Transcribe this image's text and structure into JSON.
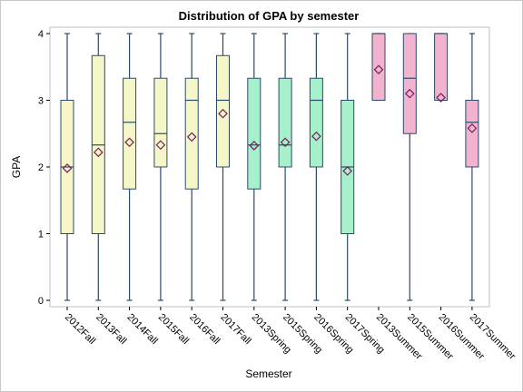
{
  "chart_data": {
    "type": "boxplot",
    "title": "Distribution of GPA by semester",
    "xlabel": "Semester",
    "ylabel": "GPA",
    "ylim": [
      0,
      4
    ],
    "yticks": [
      0,
      1,
      2,
      3,
      4
    ],
    "grid": false,
    "legend": "none",
    "colors": {
      "Fall": "#f5f7c8",
      "Spring": "#a6f0cc",
      "Summer": "#f2b3cf",
      "line": "#2e4a6b",
      "mean_marker": "#7b1c5a"
    },
    "categories": [
      "2012Fall",
      "2013Fall",
      "2014Fall",
      "2015Fall",
      "2016Fall",
      "2017Fall",
      "2013Spring",
      "2015Spring",
      "2016Spring",
      "2017Spring",
      "2013Summer",
      "2015Summer",
      "2016Summer",
      "2017Summer"
    ],
    "groups": [
      "Fall",
      "Fall",
      "Fall",
      "Fall",
      "Fall",
      "Fall",
      "Spring",
      "Spring",
      "Spring",
      "Spring",
      "Summer",
      "Summer",
      "Summer",
      "Summer"
    ],
    "boxes": [
      {
        "min": 0,
        "q1": 1.0,
        "median": 2.0,
        "q3": 3.0,
        "max": 4,
        "mean": 1.98
      },
      {
        "min": 0,
        "q1": 1.0,
        "median": 2.33,
        "q3": 3.67,
        "max": 4,
        "mean": 2.22
      },
      {
        "min": 0,
        "q1": 1.67,
        "median": 2.67,
        "q3": 3.33,
        "max": 4,
        "mean": 2.37
      },
      {
        "min": 0,
        "q1": 2.0,
        "median": 2.5,
        "q3": 3.33,
        "max": 4,
        "mean": 2.33
      },
      {
        "min": 0,
        "q1": 1.67,
        "median": 3.0,
        "q3": 3.33,
        "max": 4,
        "mean": 2.45
      },
      {
        "min": 0,
        "q1": 2.0,
        "median": 3.0,
        "q3": 3.67,
        "max": 4,
        "mean": 2.8
      },
      {
        "min": 0,
        "q1": 1.67,
        "median": 2.33,
        "q3": 3.33,
        "max": 4,
        "mean": 2.32
      },
      {
        "min": 0,
        "q1": 2.0,
        "median": 2.33,
        "q3": 3.33,
        "max": 4,
        "mean": 2.37
      },
      {
        "min": 0,
        "q1": 2.0,
        "median": 3.0,
        "q3": 3.33,
        "max": 4,
        "mean": 2.46
      },
      {
        "min": 0,
        "q1": 1.0,
        "median": 2.0,
        "q3": 3.0,
        "max": 4,
        "mean": 1.94
      },
      {
        "min": 3,
        "q1": 3.0,
        "median": 4.0,
        "q3": 4.0,
        "max": 4,
        "mean": 3.46
      },
      {
        "min": 0,
        "q1": 2.5,
        "median": 3.33,
        "q3": 4.0,
        "max": 4,
        "mean": 3.1
      },
      {
        "min": 3,
        "q1": 3.0,
        "median": 4.0,
        "q3": 4.0,
        "max": 4,
        "mean": 3.04
      },
      {
        "min": 0,
        "q1": 2.0,
        "median": 2.67,
        "q3": 3.0,
        "max": 4,
        "mean": 2.58
      }
    ]
  }
}
